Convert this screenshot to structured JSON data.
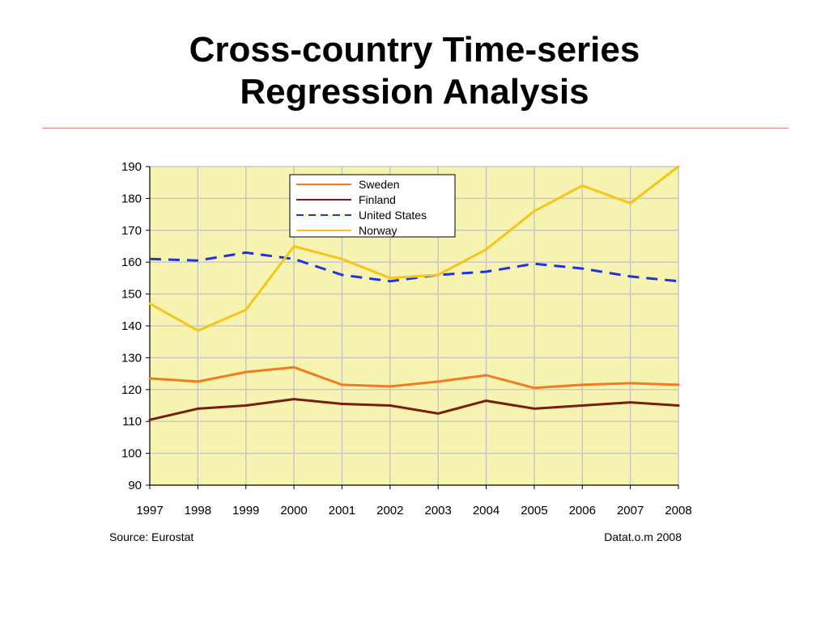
{
  "slide": {
    "title_line1": "Cross-country Time-series",
    "title_line2": "Regression Analysis"
  },
  "colors": {
    "plot_background": "#f7f3b0",
    "grid": "#c8c8c8",
    "rule": "#e8847c"
  },
  "chart_data": {
    "type": "line",
    "x": [
      "1997",
      "1998",
      "1999",
      "2000",
      "2001",
      "2002",
      "2003",
      "2004",
      "2005",
      "2006",
      "2007",
      "2008"
    ],
    "ylim": [
      90,
      190
    ],
    "yticks": [
      90,
      100,
      110,
      120,
      130,
      140,
      150,
      160,
      170,
      180,
      190
    ],
    "grid": true,
    "legend_position": "top-center",
    "series": [
      {
        "name": "Sweden",
        "color": "#f47a20",
        "dash": "solid",
        "values": [
          123.5,
          122.5,
          125.5,
          127,
          121.5,
          121,
          122.5,
          124.5,
          120.5,
          121.5,
          122,
          121.5
        ]
      },
      {
        "name": "Finland",
        "color": "#7a1c10",
        "dash": "solid",
        "values": [
          110.5,
          114,
          115,
          117,
          115.5,
          115,
          112.5,
          116.5,
          114,
          115,
          116,
          115
        ]
      },
      {
        "name": "United States",
        "color": "#1f33e0",
        "dash": "dashed",
        "values": [
          161,
          160.5,
          163,
          161,
          156,
          154,
          156,
          157,
          159.5,
          158,
          155.5,
          154
        ]
      },
      {
        "name": "Norway",
        "color": "#f5c518",
        "dash": "solid",
        "values": [
          147,
          138.5,
          145,
          165,
          161,
          155,
          156,
          164,
          176,
          184,
          178.5,
          190
        ]
      }
    ],
    "source_note": "Source: Eurostat",
    "credit_note": "Datat.o.m 2008"
  }
}
